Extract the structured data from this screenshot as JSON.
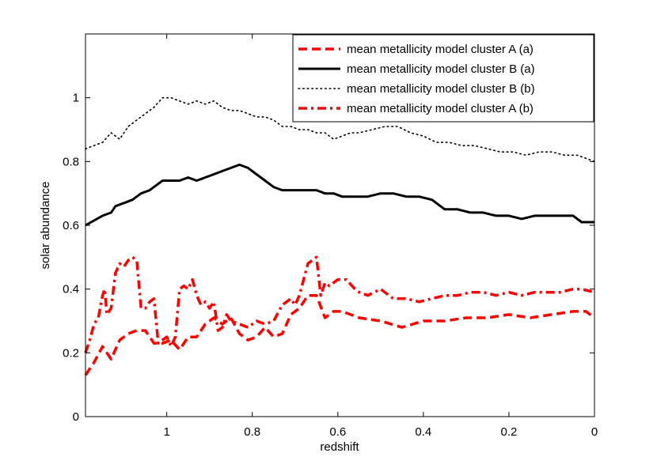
{
  "chart_data": {
    "type": "line",
    "title": "",
    "xlabel": "redshift",
    "ylabel": "solar abundance",
    "xlim": [
      1.19,
      0
    ],
    "x_reversed": true,
    "ylim": [
      0,
      1.2
    ],
    "xticks": [
      1,
      0.8,
      0.6,
      0.4,
      0.2,
      0
    ],
    "xtick_labels": [
      "1",
      "0.8",
      "0.6",
      "0.4",
      "0.2",
      "0"
    ],
    "yticks": [
      0,
      0.2,
      0.4,
      0.6,
      0.8,
      1
    ],
    "ytick_labels": [
      "0",
      "0.2",
      "0.4",
      "0.6",
      "0.8",
      "1"
    ],
    "grid": false,
    "legend_position": "top-right",
    "series": [
      {
        "name": "mean metallicity model cluster A (a)",
        "color": "#ff0000",
        "style": "dashed",
        "x": [
          1.19,
          1.17,
          1.15,
          1.13,
          1.11,
          1.09,
          1.07,
          1.05,
          1.03,
          1.01,
          0.99,
          0.97,
          0.95,
          0.93,
          0.91,
          0.89,
          0.87,
          0.85,
          0.83,
          0.81,
          0.79,
          0.77,
          0.75,
          0.73,
          0.71,
          0.69,
          0.67,
          0.65,
          0.63,
          0.61,
          0.59,
          0.57,
          0.55,
          0.5,
          0.45,
          0.4,
          0.35,
          0.3,
          0.25,
          0.2,
          0.15,
          0.1,
          0.05,
          0.02,
          0
        ],
        "y": [
          0.13,
          0.17,
          0.22,
          0.18,
          0.24,
          0.26,
          0.27,
          0.27,
          0.23,
          0.23,
          0.24,
          0.21,
          0.25,
          0.25,
          0.29,
          0.31,
          0.29,
          0.31,
          0.26,
          0.24,
          0.25,
          0.28,
          0.25,
          0.26,
          0.32,
          0.34,
          0.38,
          0.38,
          0.31,
          0.33,
          0.33,
          0.32,
          0.31,
          0.3,
          0.28,
          0.3,
          0.3,
          0.31,
          0.31,
          0.32,
          0.31,
          0.32,
          0.33,
          0.33,
          0.31
        ]
      },
      {
        "name": "mean metallicity model cluster B (a)",
        "color": "#000000",
        "style": "solid",
        "x": [
          1.19,
          1.15,
          1.13,
          1.12,
          1.1,
          1.08,
          1.06,
          1.04,
          1.02,
          1.01,
          0.99,
          0.97,
          0.95,
          0.93,
          0.91,
          0.89,
          0.87,
          0.85,
          0.83,
          0.81,
          0.79,
          0.77,
          0.75,
          0.73,
          0.71,
          0.69,
          0.67,
          0.65,
          0.63,
          0.61,
          0.59,
          0.57,
          0.55,
          0.53,
          0.5,
          0.47,
          0.44,
          0.41,
          0.38,
          0.36,
          0.35,
          0.32,
          0.29,
          0.26,
          0.23,
          0.2,
          0.17,
          0.14,
          0.11,
          0.08,
          0.05,
          0.03,
          0
        ],
        "y": [
          0.6,
          0.63,
          0.64,
          0.66,
          0.67,
          0.68,
          0.7,
          0.71,
          0.73,
          0.74,
          0.74,
          0.74,
          0.75,
          0.74,
          0.75,
          0.76,
          0.77,
          0.78,
          0.79,
          0.78,
          0.76,
          0.74,
          0.72,
          0.71,
          0.71,
          0.71,
          0.71,
          0.71,
          0.7,
          0.7,
          0.69,
          0.69,
          0.69,
          0.69,
          0.7,
          0.7,
          0.69,
          0.69,
          0.68,
          0.66,
          0.65,
          0.65,
          0.64,
          0.64,
          0.63,
          0.63,
          0.62,
          0.63,
          0.63,
          0.63,
          0.63,
          0.61,
          0.61
        ]
      },
      {
        "name": "mean metallicity model cluster B (b)",
        "color": "#000000",
        "style": "dotted",
        "x": [
          1.19,
          1.15,
          1.13,
          1.11,
          1.09,
          1.07,
          1.05,
          1.03,
          1.01,
          0.99,
          0.97,
          0.95,
          0.93,
          0.91,
          0.89,
          0.87,
          0.85,
          0.83,
          0.81,
          0.79,
          0.77,
          0.75,
          0.73,
          0.71,
          0.69,
          0.67,
          0.65,
          0.63,
          0.61,
          0.59,
          0.57,
          0.55,
          0.52,
          0.49,
          0.46,
          0.43,
          0.4,
          0.37,
          0.34,
          0.31,
          0.28,
          0.25,
          0.22,
          0.19,
          0.16,
          0.13,
          0.1,
          0.07,
          0.04,
          0.02,
          0
        ],
        "y": [
          0.84,
          0.86,
          0.89,
          0.87,
          0.91,
          0.93,
          0.95,
          0.97,
          1.0,
          1.0,
          0.99,
          0.98,
          0.99,
          0.98,
          0.99,
          0.97,
          0.96,
          0.96,
          0.95,
          0.94,
          0.94,
          0.93,
          0.91,
          0.91,
          0.9,
          0.9,
          0.89,
          0.89,
          0.87,
          0.88,
          0.89,
          0.89,
          0.9,
          0.91,
          0.91,
          0.89,
          0.88,
          0.86,
          0.86,
          0.85,
          0.85,
          0.84,
          0.83,
          0.83,
          0.82,
          0.83,
          0.83,
          0.82,
          0.82,
          0.81,
          0.8
        ]
      },
      {
        "name": "mean metallicity model cluster A (b)",
        "color": "#ff0000",
        "style": "dashdot",
        "x": [
          1.19,
          1.18,
          1.17,
          1.16,
          1.15,
          1.145,
          1.14,
          1.13,
          1.12,
          1.11,
          1.1,
          1.09,
          1.08,
          1.07,
          1.06,
          1.05,
          1.04,
          1.03,
          1.02,
          1.01,
          1.0,
          0.99,
          0.98,
          0.97,
          0.96,
          0.95,
          0.94,
          0.93,
          0.92,
          0.91,
          0.9,
          0.89,
          0.88,
          0.87,
          0.86,
          0.85,
          0.83,
          0.81,
          0.79,
          0.77,
          0.75,
          0.73,
          0.71,
          0.7,
          0.69,
          0.68,
          0.67,
          0.66,
          0.65,
          0.64,
          0.63,
          0.62,
          0.6,
          0.58,
          0.56,
          0.55,
          0.53,
          0.5,
          0.47,
          0.44,
          0.41,
          0.38,
          0.35,
          0.32,
          0.29,
          0.26,
          0.23,
          0.2,
          0.17,
          0.14,
          0.11,
          0.08,
          0.05,
          0.03,
          0
        ],
        "y": [
          0.2,
          0.24,
          0.29,
          0.31,
          0.38,
          0.4,
          0.32,
          0.34,
          0.45,
          0.48,
          0.47,
          0.49,
          0.5,
          0.49,
          0.34,
          0.34,
          0.36,
          0.37,
          0.23,
          0.24,
          0.25,
          0.22,
          0.25,
          0.4,
          0.41,
          0.4,
          0.43,
          0.38,
          0.35,
          0.36,
          0.34,
          0.36,
          0.27,
          0.28,
          0.32,
          0.3,
          0.29,
          0.28,
          0.3,
          0.29,
          0.3,
          0.35,
          0.37,
          0.35,
          0.38,
          0.43,
          0.48,
          0.49,
          0.5,
          0.38,
          0.42,
          0.41,
          0.43,
          0.43,
          0.4,
          0.39,
          0.38,
          0.4,
          0.37,
          0.37,
          0.36,
          0.37,
          0.38,
          0.38,
          0.39,
          0.39,
          0.38,
          0.39,
          0.38,
          0.39,
          0.39,
          0.39,
          0.4,
          0.4,
          0.39
        ]
      }
    ]
  }
}
